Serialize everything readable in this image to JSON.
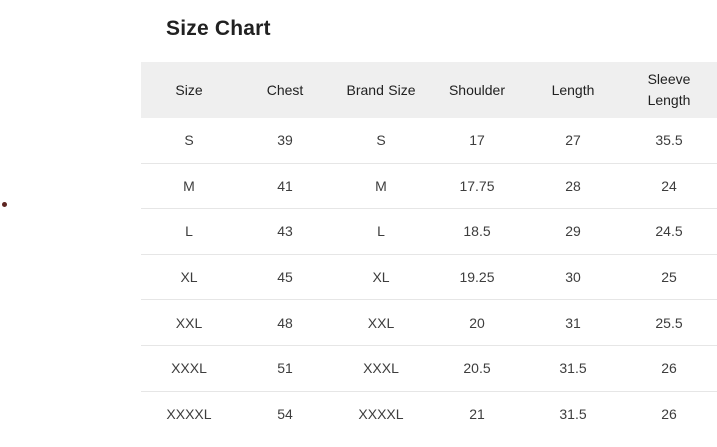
{
  "page": {
    "title": "Size Chart"
  },
  "table": {
    "columns": [
      "Size",
      "Chest",
      "Brand Size",
      "Shoulder",
      "Length",
      "Sleeve Length"
    ],
    "rows": [
      [
        "S",
        "39",
        "S",
        "17",
        "27",
        "35.5"
      ],
      [
        "M",
        "41",
        "M",
        "17.75",
        "28",
        "24"
      ],
      [
        "L",
        "43",
        "L",
        "18.5",
        "29",
        "24.5"
      ],
      [
        "XL",
        "45",
        "XL",
        "19.25",
        "30",
        "25"
      ],
      [
        "XXL",
        "48",
        "XXL",
        "20",
        "31",
        "25.5"
      ],
      [
        "XXXL",
        "51",
        "XXXL",
        "20.5",
        "31.5",
        "26"
      ],
      [
        "XXXXL",
        "54",
        "XXXXL",
        "21",
        "31.5",
        "26"
      ]
    ]
  },
  "colors": {
    "header_bg": "#efefef",
    "divider": "#e6e6e6",
    "title_text": "#212121",
    "cell_text": "#3d3d3d",
    "stray_dot": "#5d2521"
  }
}
